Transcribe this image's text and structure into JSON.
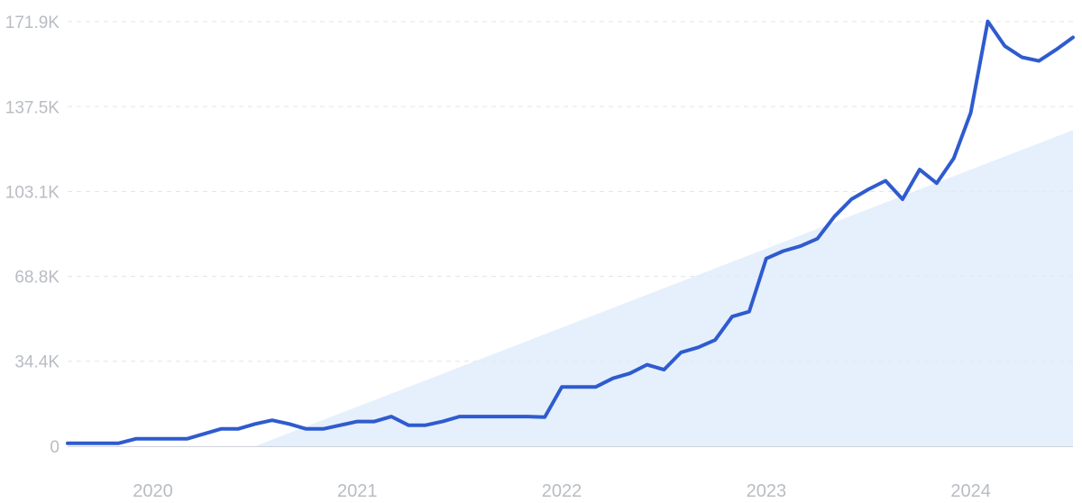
{
  "chart_data": {
    "type": "line",
    "title": "",
    "xlabel": "",
    "ylabel": "",
    "y_ticks": [
      "0",
      "34.4K",
      "68.8K",
      "103.1K",
      "137.5K",
      "171.9K"
    ],
    "y_tick_values": [
      0,
      34400,
      68800,
      103100,
      137500,
      171900
    ],
    "x_ticks": [
      "2020",
      "2021",
      "2022",
      "2023",
      "2024"
    ],
    "x_range": [
      "2019-08",
      "2024-07"
    ],
    "ylim": [
      0,
      171900
    ],
    "grid": true,
    "legend": "none",
    "colors": {
      "line": "#2f5bcf",
      "trend_fill": "#dcebfb"
    },
    "series": [
      {
        "x": [
          "2019-08",
          "2019-09",
          "2019-10",
          "2019-11",
          "2019-12",
          "2020-01",
          "2020-02",
          "2020-03",
          "2020-04",
          "2020-05",
          "2020-06",
          "2020-07",
          "2020-08",
          "2020-09",
          "2020-10",
          "2020-11",
          "2020-12",
          "2021-01",
          "2021-02",
          "2021-03",
          "2021-04",
          "2021-05",
          "2021-06",
          "2021-07",
          "2021-08",
          "2021-09",
          "2021-10",
          "2021-11",
          "2021-12",
          "2022-01",
          "2022-02",
          "2022-03",
          "2022-04",
          "2022-05",
          "2022-06",
          "2022-07",
          "2022-08",
          "2022-09",
          "2022-10",
          "2022-11",
          "2022-12",
          "2023-01",
          "2023-02",
          "2023-03",
          "2023-04",
          "2023-05",
          "2023-06",
          "2023-07",
          "2023-08",
          "2023-09",
          "2023-10",
          "2023-11",
          "2023-12",
          "2024-01",
          "2024-02",
          "2024-03",
          "2024-04",
          "2024-05",
          "2024-06",
          "2024-07"
        ],
        "values": [
          1200,
          1200,
          1200,
          1200,
          3000,
          3000,
          3000,
          3000,
          5000,
          7000,
          7000,
          9000,
          10500,
          9000,
          7000,
          7000,
          8500,
          10000,
          10000,
          12000,
          8500,
          8500,
          10000,
          12000,
          12000,
          12000,
          12000,
          12000,
          11800,
          24000,
          24000,
          24000,
          27500,
          29500,
          33000,
          31000,
          38000,
          40000,
          43000,
          52500,
          54500,
          76000,
          79000,
          81000,
          84000,
          93000,
          100000,
          104000,
          107500,
          100000,
          112000,
          106500,
          116500,
          135000,
          172000,
          162000,
          157500,
          156000,
          160500,
          165500
        ]
      }
    ],
    "trend": {
      "type": "linear",
      "start": [
        "2020-07",
        0
      ],
      "end": [
        "2024-07",
        128000
      ]
    }
  }
}
